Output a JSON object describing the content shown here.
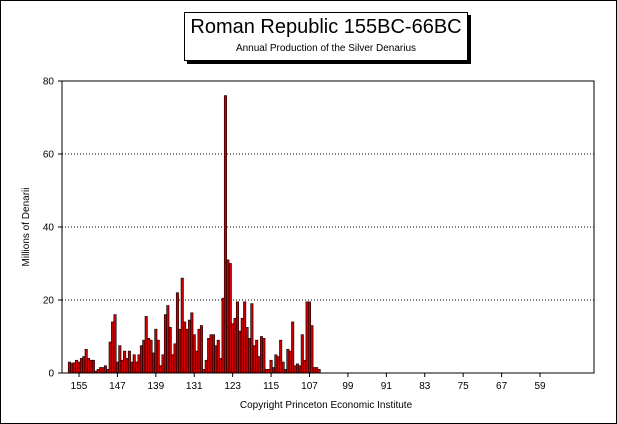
{
  "chart_data": {
    "type": "bar",
    "title": "Roman Republic 155BC-66BC",
    "subtitle": "Annual Production of the Silver Denarius",
    "xlabel": "Copyright Princeton Economic Institute",
    "ylabel": "Millions of Denarii",
    "ylim": [
      0,
      80
    ],
    "yticks": [
      0,
      20,
      40,
      60,
      80
    ],
    "grid": "horizontal-dotted",
    "bar_color": "#cc0000",
    "x_start": 157,
    "x_step": -0.5,
    "xtick_labels": [
      "155",
      "147",
      "139",
      "131",
      "123",
      "115",
      "107",
      "99",
      "91",
      "83",
      "75",
      "67",
      "59"
    ],
    "values": [
      3.0,
      2.7,
      2.8,
      3.5,
      3.0,
      4.0,
      4.5,
      6.5,
      4.0,
      3.5,
      3.5,
      0.5,
      1.0,
      1.5,
      1.5,
      2.0,
      1.0,
      8.5,
      14.0,
      16.0,
      3.0,
      7.5,
      3.5,
      6.0,
      4.0,
      6.0,
      3.0,
      5.0,
      3.0,
      5.0,
      7.5,
      9.0,
      15.5,
      9.5,
      9.0,
      5.5,
      12.0,
      9.0,
      2.0,
      5.0,
      16.0,
      18.5,
      12.5,
      5.0,
      8.0,
      22.0,
      12.0,
      26.0,
      14.0,
      12.0,
      14.5,
      16.5,
      10.5,
      6.0,
      12.0,
      13.0,
      1.0,
      3.5,
      9.5,
      10.5,
      10.5,
      7.5,
      9.0,
      4.0,
      20.5,
      76.0,
      31.0,
      30.0,
      13.5,
      15.0,
      19.5,
      11.5,
      15.0,
      19.5,
      12.5,
      9.5,
      19.0,
      7.5,
      9.0,
      4.5,
      10.0,
      9.5,
      1.0,
      1.0,
      3.5,
      1.5,
      5.0,
      4.5,
      9.0,
      3.0,
      1.0,
      6.5,
      6.0,
      14.0,
      2.0,
      2.5,
      2.0,
      10.5,
      3.5,
      19.5,
      19.5,
      13.0,
      1.5,
      1.5,
      1.0
    ]
  }
}
